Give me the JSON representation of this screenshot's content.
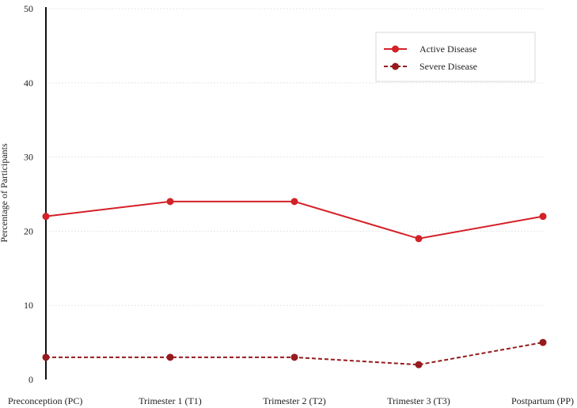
{
  "chart_data": {
    "type": "line",
    "title": "",
    "xlabel": "",
    "ylabel": "Percentage of Participants",
    "categories": [
      "Preconception (PC)",
      "Trimester 1 (T1)",
      "Trimester 2 (T2)",
      "Trimester 3 (T3)",
      "Postpartum (PP)"
    ],
    "series": [
      {
        "name": "Active Disease",
        "values": [
          22,
          24,
          24,
          19,
          22
        ],
        "color": "#d42027",
        "line_style": "solid"
      },
      {
        "name": "Severe Disease",
        "values": [
          3,
          3,
          3,
          2,
          5
        ],
        "color": "#951b1e",
        "line_style": "dashed"
      }
    ],
    "ylim": [
      0,
      50
    ],
    "yticks": [
      "0",
      "10",
      "20",
      "30",
      "40",
      "50"
    ],
    "grid": true,
    "legend_position": "top-right"
  }
}
